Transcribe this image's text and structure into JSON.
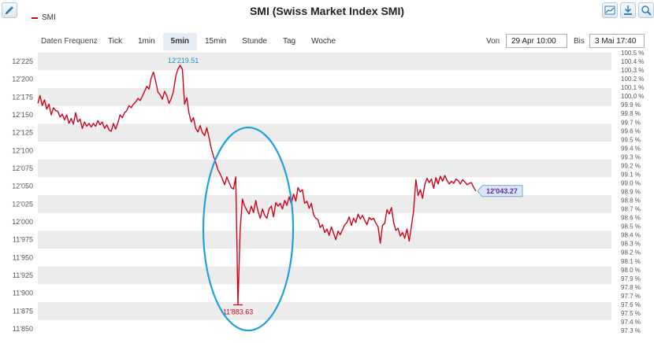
{
  "header": {
    "title": "SMI (Swiss Market Index SMI)",
    "legend_label": "SMI"
  },
  "toolbar": {
    "edit_icon": "pencil-icon",
    "tools": [
      "chart-icon",
      "download-icon",
      "zoom-icon"
    ]
  },
  "controls": {
    "frequency_label": "Daten Frequenz",
    "frequency_options": [
      "Tick",
      "1min",
      "5min",
      "15min",
      "Stunde",
      "Tag",
      "Woche"
    ],
    "frequency_selected": "5min",
    "from_label": "Von",
    "from_value": "29 Apr 10:00",
    "to_label": "Bis",
    "to_value": "3 Mai 17:40"
  },
  "colors": {
    "line": "#d0021b",
    "band": "#ececec",
    "highlight_ellipse": "#1ea0e0",
    "last_badge_bg": "#dbe7f5",
    "last_badge_border": "#6fa8dc",
    "max_label": "#2a8bc4"
  },
  "chart_data": {
    "type": "line",
    "series": [
      {
        "name": "SMI",
        "values": [
          12166,
          12177,
          12163,
          12171,
          12158,
          12165,
          12150,
          12160,
          12156,
          12155,
          12147,
          12151,
          12143,
          12150,
          12138,
          12145,
          12137,
          12153,
          12140,
          12144,
          12131,
          12140,
          12134,
          12138,
          12133,
          12138,
          12134,
          12142,
          12136,
          12140,
          12131,
          12136,
          12129,
          12127,
          12138,
          12130,
          12139,
          12150,
          12146,
          12153,
          12156,
          12163,
          12160,
          12165,
          12168,
          12173,
          12170,
          12176,
          12183,
          12190,
          12186,
          12202,
          12210,
          12197,
          12182,
          12178,
          12172,
          12183,
          12177,
          12166,
          12173,
          12183,
          12204,
          12214,
          12219.51,
          12214,
          12165,
          12174,
          12152,
          12140,
          12146,
          12131,
          12126,
          12135,
          12125,
          12121,
          12132,
          12118,
          12103,
          12092,
          12083,
          12073,
          12067,
          12060,
          12052,
          12063,
          12055,
          12048,
          12046,
          12063,
          11883.63,
          11990,
          12032,
          12022,
          12016,
          12011,
          12022,
          12013,
          12030,
          12015,
          12005,
          12018,
          12009,
          12005,
          12018,
          12022,
          12007,
          12027,
          12022,
          12026,
          12018,
          12030,
          12023,
          12035,
          12025,
          12039,
          12029,
          12048,
          12042,
          12045,
          12026,
          12029,
          12019,
          12026,
          12010,
          12005,
          12003,
          11992,
          11996,
          11985,
          11990,
          11981,
          11993,
          11984,
          11975,
          11987,
          11982,
          11989,
          11996,
          11999,
          12007,
          11995,
          12005,
          11999,
          12011,
          12004,
          12009,
          12002,
          11996,
          12006,
          12003,
          12005,
          11998,
          11993,
          11970,
          11995,
          11998,
          12017,
          12011,
          12020,
          11999,
          11988,
          11991,
          11980,
          11985,
          11977,
          11990,
          11973,
          11994,
          12016,
          12059,
          12037,
          12045,
          12033,
          12052,
          12061,
          12055,
          12060,
          12047,
          12062,
          12053,
          12064,
          12057,
          12065,
          12058,
          12053,
          12057,
          12054,
          12060,
          12058,
          12053,
          12059,
          12056,
          12052,
          12054,
          12055,
          12048,
          12043.27
        ]
      }
    ],
    "ylim": [
      11840,
      12240
    ],
    "left_axis_ticks": [
      "12'225",
      "12'200",
      "12'175",
      "12'150",
      "12'125",
      "12'100",
      "12'075",
      "12'050",
      "12'025",
      "12'000",
      "11'975",
      "11'950",
      "11'925",
      "11'900",
      "11'875",
      "11'850"
    ],
    "left_axis_values": [
      12225,
      12200,
      12175,
      12150,
      12125,
      12100,
      12075,
      12050,
      12025,
      12000,
      11975,
      11950,
      11925,
      11900,
      11875,
      11850
    ],
    "right_axis_ticks": [
      "100.5 %",
      "100.4 %",
      "100.3 %",
      "100.2 %",
      "100.1 %",
      "100.0 %",
      "99.9 %",
      "99.8 %",
      "99.7 %",
      "99.6 %",
      "99.5 %",
      "99.4 %",
      "99.3 %",
      "99.2 %",
      "99.1 %",
      "99.0 %",
      "98.9 %",
      "98.8 %",
      "98.7 %",
      "98.6 %",
      "98.5 %",
      "98.4 %",
      "98.3 %",
      "98.2 %",
      "98.1 %",
      "98.0 %",
      "97.9 %",
      "97.8 %",
      "97.7 %",
      "97.6 %",
      "97.5 %",
      "97.4 %",
      "97.3 %"
    ],
    "right_axis_values": [
      100.5,
      100.4,
      100.3,
      100.2,
      100.1,
      100.0,
      99.9,
      99.8,
      99.7,
      99.6,
      99.5,
      99.4,
      99.3,
      99.2,
      99.1,
      99.0,
      98.9,
      98.8,
      98.7,
      98.6,
      98.5,
      98.4,
      98.3,
      98.2,
      98.1,
      98.0,
      97.9,
      97.8,
      97.7,
      97.6,
      97.5,
      97.4,
      97.3
    ],
    "right_axis_ylim": [
      97.25,
      100.58
    ],
    "max_label": "12'219.51",
    "min_label": "11'883.63",
    "last_label": "12'043.27",
    "min_value": 11883.63,
    "max_value": 12219.51,
    "last_value": 12043.27,
    "grid": "alternating-bands",
    "annotation": "ellipse around the minimum spike"
  }
}
